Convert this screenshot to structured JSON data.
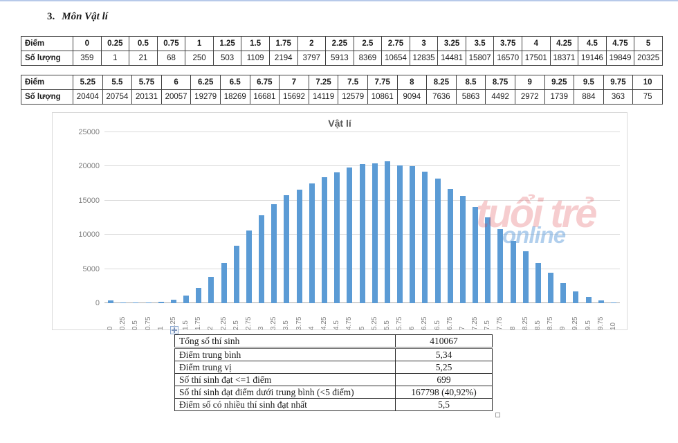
{
  "heading": {
    "number": "3.",
    "title": "Môn Vật lí"
  },
  "score_tables": {
    "row_labels": [
      "Điểm",
      "Số lượng"
    ],
    "table1": {
      "scores": [
        "0",
        "0.25",
        "0.5",
        "0.75",
        "1",
        "1.25",
        "1.5",
        "1.75",
        "2",
        "2.25",
        "2.5",
        "2.75",
        "3",
        "3.25",
        "3.5",
        "3.75",
        "4",
        "4.25",
        "4.5",
        "4.75",
        "5"
      ],
      "counts": [
        "359",
        "1",
        "21",
        "68",
        "250",
        "503",
        "1109",
        "2194",
        "3797",
        "5913",
        "8369",
        "10654",
        "12835",
        "14481",
        "15807",
        "16570",
        "17501",
        "18371",
        "19146",
        "19849",
        "20325"
      ]
    },
    "table2": {
      "scores": [
        "5.25",
        "5.5",
        "5.75",
        "6",
        "6.25",
        "6.5",
        "6.75",
        "7",
        "7.25",
        "7.5",
        "7.75",
        "8",
        "8.25",
        "8.5",
        "8.75",
        "9",
        "9.25",
        "9.5",
        "9.75",
        "10"
      ],
      "counts": [
        "20404",
        "20754",
        "20131",
        "20057",
        "19279",
        "18269",
        "16681",
        "15692",
        "14119",
        "12579",
        "10861",
        "9094",
        "7636",
        "5863",
        "4492",
        "2972",
        "1739",
        "884",
        "363",
        "75"
      ]
    }
  },
  "chart_data": {
    "type": "bar",
    "title": "Vật lí",
    "categories": [
      "0",
      "0.25",
      "0.5",
      "0.75",
      "1",
      "1.25",
      "1.5",
      "1.75",
      "2",
      "2.25",
      "2.5",
      "2.75",
      "3",
      "3.25",
      "3.5",
      "3.75",
      "4",
      "4.25",
      "4.5",
      "4.75",
      "5",
      "5.25",
      "5.5",
      "5.75",
      "6",
      "6.25",
      "6.5",
      "6.75",
      "7",
      "7.25",
      "7.5",
      "7.75",
      "8",
      "8.25",
      "8.5",
      "8.75",
      "9",
      "9.25",
      "9.5",
      "9.75",
      "10"
    ],
    "values": [
      359,
      1,
      21,
      68,
      250,
      503,
      1109,
      2194,
      3797,
      5913,
      8369,
      10654,
      12835,
      14481,
      15807,
      16570,
      17501,
      18371,
      19146,
      19849,
      20325,
      20404,
      20754,
      20131,
      20057,
      19279,
      18269,
      16681,
      15692,
      14119,
      12579,
      10861,
      9094,
      7636,
      5863,
      4492,
      2972,
      1739,
      884,
      363,
      75
    ],
    "xlabel": "",
    "ylabel": "",
    "ylim": [
      0,
      25000
    ],
    "ytick_step": 5000,
    "yticks": [
      "0",
      "5000",
      "10000",
      "15000",
      "20000",
      "25000"
    ],
    "grid": true,
    "legend": "none",
    "bar_color": "#5B9BD5"
  },
  "summary_table": {
    "rows": [
      {
        "label": "Tổng số thí sinh",
        "value": "410067"
      },
      {
        "label": "Điểm trung bình",
        "value": "5,34"
      },
      {
        "label": "Điểm trung vị",
        "value": "5,25"
      },
      {
        "label": "Số thí sinh đạt <=1 điểm",
        "value": "699"
      },
      {
        "label": "Số thí sinh đạt điểm dưới trung bình (<5 điểm)",
        "value": "167798 (40,92%)",
        "spellcheck_flag": "(40,92%)"
      },
      {
        "label": "Điểm số có nhiều thí sinh đạt nhất",
        "value": "5,5"
      }
    ]
  },
  "watermark": {
    "line1": "tuổi trẻ",
    "line2": "online",
    "color_red": "#DD3C46",
    "color_blue": "#64A0DC"
  },
  "colors": {
    "bar": "#5B9BD5",
    "gridline": "#D9D9D9",
    "axis_text": "#7F7F7F",
    "chart_title_text": "#595959",
    "top_edge": "#B7C9E9"
  }
}
